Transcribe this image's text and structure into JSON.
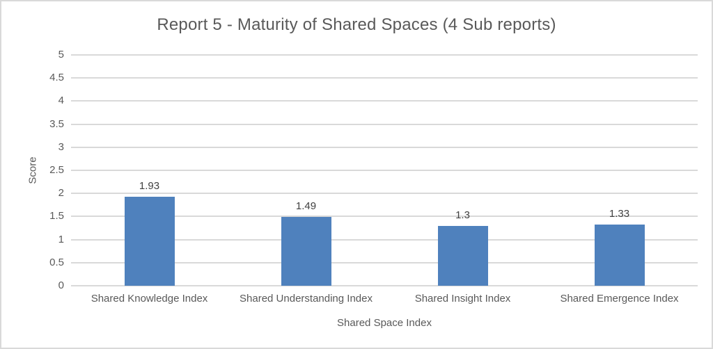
{
  "chart_data": {
    "type": "bar",
    "title": "Report 5 - Maturity of Shared Spaces (4 Sub reports)",
    "categories": [
      "Shared Knowledge Index",
      "Shared Understanding Index",
      "Shared Insight Index",
      "Shared Emergence Index"
    ],
    "values": [
      1.93,
      1.49,
      1.3,
      1.33
    ],
    "data_labels": [
      "1.93",
      "1.49",
      "1.3",
      "1.33"
    ],
    "xlabel": "Shared Space Index",
    "ylabel": "Score",
    "ylim": [
      0,
      5
    ],
    "yticks": [
      0,
      0.5,
      1,
      1.5,
      2,
      2.5,
      3,
      3.5,
      4,
      4.5,
      5
    ],
    "grid": true,
    "legend": "none",
    "colors": {
      "bar": "#4f81bd",
      "gridline": "#d9d9d9",
      "axis_line": "#d9d9d9",
      "title_text": "#595959",
      "axis_text": "#595959",
      "data_label_text": "#404040",
      "background": "#ffffff",
      "border": "#d9d9d9"
    }
  }
}
